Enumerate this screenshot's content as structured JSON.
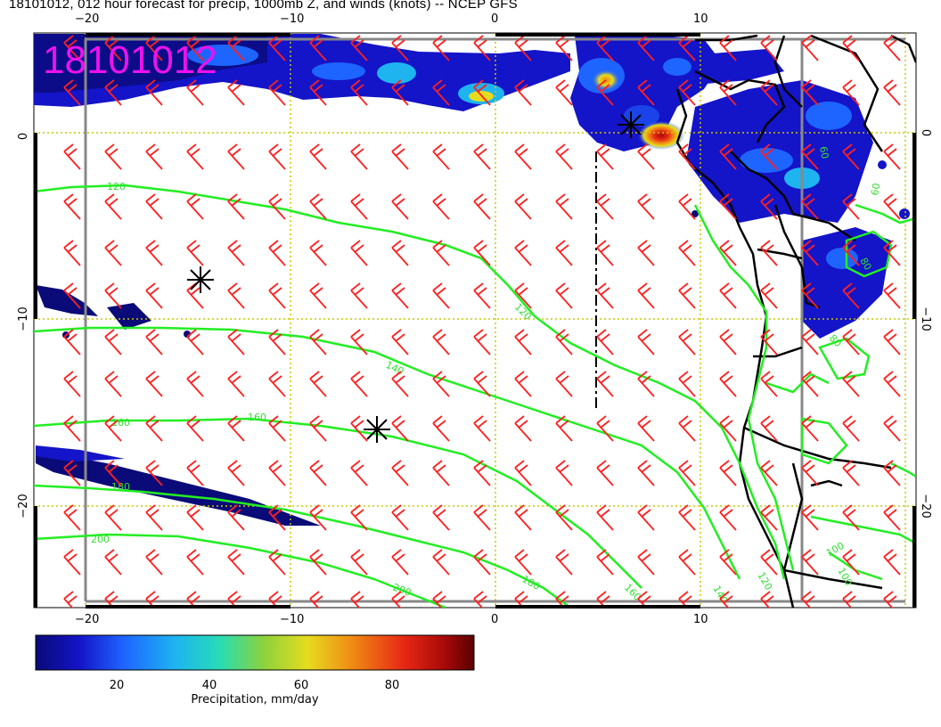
{
  "title": "18101012, 012 hour forecast for precip, 1000mb Z, and winds (knots) -- NCEP GFS",
  "stamp": "18101012",
  "axes": {
    "lon_ticks": [
      "−20",
      "−10",
      "0",
      "10"
    ],
    "lat_ticks": [
      "0",
      "−10",
      "−20"
    ]
  },
  "contours": {
    "color": "#22ee22",
    "labels": [
      "120",
      "120",
      "140",
      "160",
      "160",
      "180",
      "180",
      "200",
      "200",
      "160",
      "140",
      "120",
      "100",
      "100",
      "80",
      "60",
      "60",
      "80"
    ]
  },
  "colorbar": {
    "title": "Precipitation, mm/day",
    "ticks": [
      "20",
      "40",
      "60",
      "80"
    ],
    "colors": [
      "#0a0a78",
      "#1414c8",
      "#1e64ff",
      "#1eb4f0",
      "#28dcb4",
      "#8cd23c",
      "#e6dc1e",
      "#f08c14",
      "#e62814",
      "#aa0a0a",
      "#5a0000"
    ]
  },
  "wind_barb_color": "#ff2020",
  "colors": {
    "gridline": "#c8c800",
    "coast": "#000000",
    "frame": "#888888"
  },
  "markers": [
    "storm-marker",
    "storm-marker",
    "storm-marker"
  ]
}
